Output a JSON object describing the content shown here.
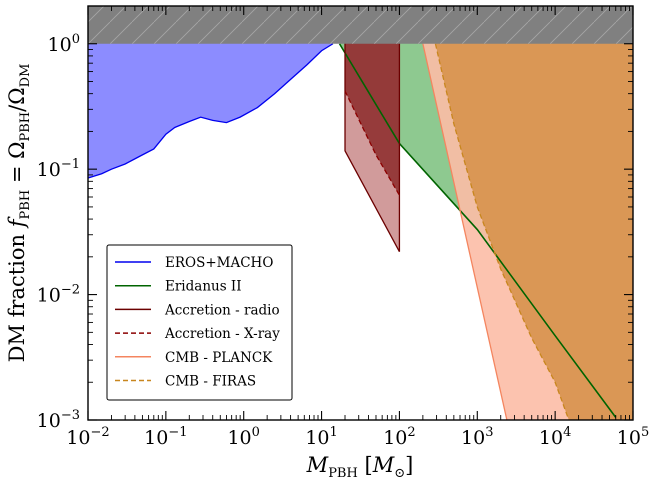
{
  "chart_data": {
    "type": "area",
    "xscale": "log",
    "yscale": "log",
    "xlim": [
      0.01,
      100000
    ],
    "ylim": [
      0.001,
      2
    ],
    "xlabel": "M_PBH [M_⊙]",
    "ylabel": "DM fraction f_PBH = Ω_PBH/Ω_DM",
    "xlabel_parts": {
      "sym": "M",
      "sub": "PBH",
      "unit_open": " [",
      "unit_sym": "M",
      "unit_sub": "⊙",
      "unit_close": "]"
    },
    "ylabel_parts": {
      "prefix": "DM fraction ",
      "f": "f",
      "sub1": "PBH",
      "eq": " = Ω",
      "sub2": "PBH",
      "slash": "/Ω",
      "sub3": "DM"
    },
    "x_ticks": [
      {
        "value": 0.01,
        "base": "10",
        "exp": "−2"
      },
      {
        "value": 0.1,
        "base": "10",
        "exp": "−1"
      },
      {
        "value": 1,
        "base": "10",
        "exp": "0"
      },
      {
        "value": 10,
        "base": "10",
        "exp": "1"
      },
      {
        "value": 100,
        "base": "10",
        "exp": "2"
      },
      {
        "value": 1000,
        "base": "10",
        "exp": "3"
      },
      {
        "value": 10000,
        "base": "10",
        "exp": "4"
      },
      {
        "value": 100000,
        "base": "10",
        "exp": "5"
      }
    ],
    "y_ticks": [
      {
        "value": 0.001,
        "base": "10",
        "exp": "−3"
      },
      {
        "value": 0.01,
        "base": "10",
        "exp": "−2"
      },
      {
        "value": 0.1,
        "base": "10",
        "exp": "−1"
      },
      {
        "value": 1,
        "base": "10",
        "exp": "0"
      }
    ],
    "excluded_region": {
      "name": "f_PBH > 1",
      "y_min": 1,
      "color": "#808080"
    },
    "series": [
      {
        "name": "EROS+MACHO",
        "key": "eros",
        "line": "solid",
        "color": "#0000ee",
        "fill": "#8c8cff",
        "bound": [
          [
            0.01,
            0.085
          ],
          [
            0.015,
            0.092
          ],
          [
            0.02,
            0.1
          ],
          [
            0.03,
            0.11
          ],
          [
            0.05,
            0.13
          ],
          [
            0.07,
            0.145
          ],
          [
            0.1,
            0.19
          ],
          [
            0.13,
            0.215
          ],
          [
            0.2,
            0.24
          ],
          [
            0.28,
            0.26
          ],
          [
            0.4,
            0.245
          ],
          [
            0.6,
            0.235
          ],
          [
            0.9,
            0.26
          ],
          [
            1.5,
            0.31
          ],
          [
            2.5,
            0.4
          ],
          [
            4,
            0.52
          ],
          [
            6.5,
            0.68
          ],
          [
            10,
            0.88
          ],
          [
            14,
            1.0
          ]
        ]
      },
      {
        "name": "Eridanus II",
        "key": "eridanus",
        "line": "solid",
        "color": "#006400",
        "fill": "#88c68a",
        "bound": [
          [
            17,
            1.0
          ],
          [
            100,
            0.16
          ],
          [
            1000,
            0.033
          ],
          [
            10000,
            0.0047
          ],
          [
            60000,
            0.00105
          ]
        ]
      },
      {
        "name": "Accretion - radio",
        "key": "acc_radio",
        "line": "solid",
        "color": "#6b0000",
        "fill": "#a34444",
        "bound": [
          [
            20,
            0.14
          ],
          [
            100,
            0.022
          ]
        ],
        "x_range": [
          20,
          100
        ]
      },
      {
        "name": "Accretion - X-ray",
        "key": "acc_xray",
        "line": "dashed",
        "color": "#8b0000",
        "fill": "#8c2a2a",
        "bound": [
          [
            20,
            0.42
          ],
          [
            30,
            0.25
          ],
          [
            50,
            0.13
          ],
          [
            100,
            0.062
          ]
        ],
        "x_range": [
          20,
          100
        ]
      },
      {
        "name": "CMB - PLANCK",
        "key": "planck",
        "line": "solid",
        "color": "#f4855f",
        "fill": "#fcbca6",
        "bound": [
          [
            200,
            1.0
          ],
          [
            2400,
            0.001
          ]
        ]
      },
      {
        "name": "CMB - FIRAS",
        "key": "firas",
        "line": "dashed",
        "color": "#c8861e",
        "fill": "#d7924c",
        "bound": [
          [
            290,
            1.0
          ],
          [
            500,
            0.23
          ],
          [
            1000,
            0.05
          ],
          [
            2000,
            0.016
          ],
          [
            5000,
            0.0045
          ],
          [
            10000,
            0.002
          ],
          [
            15000,
            0.001
          ]
        ]
      }
    ],
    "legend": {
      "placement": "lower-left",
      "entries": [
        "EROS+MACHO",
        "Eridanus II",
        "Accretion - radio",
        "Accretion - X-ray",
        "CMB - PLANCK",
        "CMB - FIRAS"
      ]
    }
  }
}
